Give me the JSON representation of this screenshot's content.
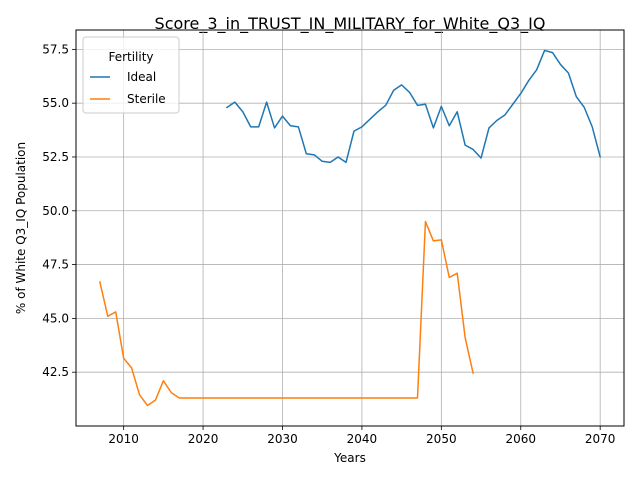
{
  "chart_data": {
    "type": "line",
    "title": "Score_3_in_TRUST_IN_MILITARY_for_White_Q3_IQ",
    "xlabel": "Years",
    "ylabel": "% of White Q3_IQ Population",
    "xlim": [
      2004,
      2073
    ],
    "ylim": [
      40.0,
      58.4
    ],
    "xticks": [
      2010,
      2020,
      2030,
      2040,
      2050,
      2060,
      2070
    ],
    "yticks": [
      42.5,
      45.0,
      47.5,
      50.0,
      52.5,
      55.0,
      57.5
    ],
    "xtick_labels": [
      "2010",
      "2020",
      "2030",
      "2040",
      "2050",
      "2060",
      "2070"
    ],
    "ytick_labels": [
      "42.5",
      "45.0",
      "47.5",
      "50.0",
      "52.5",
      "55.0",
      "57.5"
    ],
    "grid": true,
    "legend": {
      "title": "Fertility",
      "position": "top-left"
    },
    "series": [
      {
        "name": "Ideal",
        "color": "#1f77b4",
        "x": [
          2023,
          2024,
          2025,
          2026,
          2027,
          2028,
          2029,
          2030,
          2031,
          2032,
          2033,
          2034,
          2035,
          2036,
          2037,
          2038,
          2039,
          2040,
          2041,
          2042,
          2043,
          2044,
          2045,
          2046,
          2047,
          2048,
          2049,
          2050,
          2051,
          2052,
          2053,
          2054,
          2055,
          2056,
          2057,
          2058,
          2059,
          2060,
          2061,
          2062,
          2063,
          2064,
          2065,
          2066,
          2067,
          2068,
          2069,
          2070
        ],
        "values": [
          54.8,
          55.05,
          54.6,
          53.9,
          53.9,
          55.05,
          53.85,
          54.4,
          53.95,
          53.9,
          52.65,
          52.6,
          52.3,
          52.25,
          52.5,
          52.25,
          53.7,
          53.9,
          54.25,
          54.6,
          54.9,
          55.6,
          55.85,
          55.5,
          54.9,
          54.95,
          53.85,
          54.85,
          53.95,
          54.6,
          53.05,
          52.85,
          52.45,
          53.85,
          54.2,
          54.45,
          54.95,
          55.45,
          56.05,
          56.55,
          57.45,
          57.35,
          56.8,
          56.4,
          55.3,
          54.8,
          53.9,
          52.5
        ]
      },
      {
        "name": "Sterile",
        "color": "#ff7f0e",
        "x": [
          2007,
          2008,
          2009,
          2010,
          2011,
          2012,
          2013,
          2014,
          2015,
          2016,
          2017,
          2018,
          2019,
          2020,
          2021,
          2022,
          2023,
          2024,
          2025,
          2026,
          2027,
          2028,
          2029,
          2030,
          2031,
          2032,
          2033,
          2034,
          2035,
          2036,
          2037,
          2038,
          2039,
          2040,
          2041,
          2042,
          2043,
          2044,
          2045,
          2046,
          2047,
          2048,
          2049,
          2050,
          2051,
          2052,
          2053,
          2054
        ],
        "values": [
          46.7,
          45.1,
          45.3,
          43.15,
          42.7,
          41.45,
          40.95,
          41.2,
          42.1,
          41.55,
          41.3,
          41.3,
          41.3,
          41.3,
          41.3,
          41.3,
          41.3,
          41.3,
          41.3,
          41.3,
          41.3,
          41.3,
          41.3,
          41.3,
          41.3,
          41.3,
          41.3,
          41.3,
          41.3,
          41.3,
          41.3,
          41.3,
          41.3,
          41.3,
          41.3,
          41.3,
          41.3,
          41.3,
          41.3,
          41.3,
          41.3,
          49.5,
          48.6,
          48.65,
          46.9,
          47.1,
          44.1,
          42.45
        ]
      }
    ]
  }
}
